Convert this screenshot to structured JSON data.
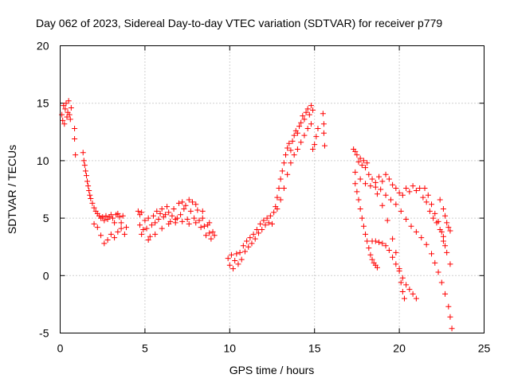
{
  "chart_data": {
    "type": "scatter",
    "title": "Day 062 of 2023, Sidereal Day-to-day VTEC variation (SDTVAR) for receiver p779",
    "xlabel": "GPS time / hours",
    "ylabel": "SDTVAR / TECUs",
    "xlim": [
      0,
      25
    ],
    "ylim": [
      -5,
      20
    ],
    "xticks": [
      "0",
      "5",
      "10",
      "15",
      "20",
      "25"
    ],
    "yticks": [
      "-5",
      "0",
      "5",
      "10",
      "15",
      "20"
    ],
    "grid": true,
    "marker": "+",
    "marker_color": "#ff0000",
    "series": [
      {
        "name": "SDTVAR",
        "points": [
          [
            0.1,
            14.0
          ],
          [
            0.15,
            13.5
          ],
          [
            0.2,
            14.8
          ],
          [
            0.25,
            13.2
          ],
          [
            0.3,
            14.5
          ],
          [
            0.35,
            15.0
          ],
          [
            0.4,
            13.8
          ],
          [
            0.45,
            14.2
          ],
          [
            0.5,
            15.2
          ],
          [
            0.55,
            14.0
          ],
          [
            0.6,
            13.6
          ],
          [
            0.65,
            14.6
          ],
          [
            0.85,
            12.8
          ],
          [
            0.85,
            11.9
          ],
          [
            0.9,
            10.5
          ],
          [
            1.35,
            10.7
          ],
          [
            1.4,
            10.0
          ],
          [
            1.45,
            9.6
          ],
          [
            1.5,
            9.1
          ],
          [
            1.55,
            8.7
          ],
          [
            1.6,
            8.2
          ],
          [
            1.65,
            7.8
          ],
          [
            1.7,
            7.4
          ],
          [
            1.75,
            7.0
          ],
          [
            1.8,
            6.7
          ],
          [
            1.9,
            6.3
          ],
          [
            2.0,
            5.9
          ],
          [
            2.1,
            5.6
          ],
          [
            2.2,
            5.4
          ],
          [
            2.3,
            5.2
          ],
          [
            2.4,
            5.0
          ],
          [
            2.5,
            5.1
          ],
          [
            2.6,
            4.8
          ],
          [
            2.7,
            5.2
          ],
          [
            2.8,
            4.9
          ],
          [
            2.9,
            5.1
          ],
          [
            3.0,
            5.3
          ],
          [
            3.1,
            5.0
          ],
          [
            3.2,
            4.6
          ],
          [
            3.3,
            5.3
          ],
          [
            3.4,
            5.4
          ],
          [
            3.5,
            5.1
          ],
          [
            3.6,
            4.6
          ],
          [
            3.7,
            5.2
          ],
          [
            2.0,
            4.5
          ],
          [
            2.2,
            4.2
          ],
          [
            2.4,
            3.5
          ],
          [
            2.6,
            2.8
          ],
          [
            2.8,
            3.1
          ],
          [
            3.0,
            3.6
          ],
          [
            3.2,
            3.3
          ],
          [
            3.4,
            3.8
          ],
          [
            3.6,
            4.1
          ],
          [
            3.8,
            3.6
          ],
          [
            3.9,
            4.2
          ],
          [
            4.6,
            5.6
          ],
          [
            4.7,
            5.3
          ],
          [
            4.8,
            5.5
          ],
          [
            4.7,
            4.4
          ],
          [
            4.8,
            3.6
          ],
          [
            4.9,
            4.0
          ],
          [
            5.0,
            4.8
          ],
          [
            5.1,
            4.1
          ],
          [
            5.2,
            5.0
          ],
          [
            5.3,
            3.4
          ],
          [
            5.4,
            4.4
          ],
          [
            5.5,
            5.2
          ],
          [
            5.6,
            4.6
          ],
          [
            5.7,
            5.6
          ],
          [
            5.8,
            4.9
          ],
          [
            5.9,
            5.4
          ],
          [
            6.0,
            5.8
          ],
          [
            6.1,
            5.1
          ],
          [
            6.2,
            5.3
          ],
          [
            6.3,
            6.0
          ],
          [
            6.4,
            5.5
          ],
          [
            6.5,
            4.7
          ],
          [
            6.6,
            5.2
          ],
          [
            6.7,
            5.8
          ],
          [
            6.8,
            4.6
          ],
          [
            6.9,
            5.0
          ],
          [
            7.0,
            6.3
          ],
          [
            7.1,
            5.3
          ],
          [
            7.2,
            4.7
          ],
          [
            7.3,
            5.8
          ],
          [
            7.4,
            6.1
          ],
          [
            7.5,
            4.9
          ],
          [
            7.6,
            4.5
          ],
          [
            7.7,
            5.6
          ],
          [
            7.8,
            6.4
          ],
          [
            7.9,
            5.0
          ],
          [
            8.0,
            4.6
          ],
          [
            8.1,
            5.7
          ],
          [
            8.2,
            4.8
          ],
          [
            8.3,
            4.2
          ],
          [
            8.4,
            5.0
          ],
          [
            8.5,
            4.3
          ],
          [
            8.6,
            3.5
          ],
          [
            8.7,
            4.4
          ],
          [
            8.8,
            3.7
          ],
          [
            8.9,
            3.2
          ],
          [
            9.0,
            3.8
          ],
          [
            9.1,
            3.5
          ],
          [
            5.2,
            3.1
          ],
          [
            5.6,
            3.6
          ],
          [
            6.0,
            4.1
          ],
          [
            6.4,
            4.5
          ],
          [
            6.8,
            4.9
          ],
          [
            7.2,
            6.4
          ],
          [
            7.6,
            6.6
          ],
          [
            8.0,
            6.2
          ],
          [
            8.4,
            5.6
          ],
          [
            8.8,
            4.6
          ],
          [
            9.9,
            1.5
          ],
          [
            10.0,
            0.9
          ],
          [
            10.1,
            1.8
          ],
          [
            10.2,
            0.6
          ],
          [
            10.3,
            1.3
          ],
          [
            10.4,
            1.9
          ],
          [
            10.5,
            1.0
          ],
          [
            10.6,
            2.0
          ],
          [
            10.7,
            1.4
          ],
          [
            10.8,
            2.6
          ],
          [
            10.9,
            2.1
          ],
          [
            11.0,
            3.0
          ],
          [
            11.1,
            2.5
          ],
          [
            11.2,
            3.3
          ],
          [
            11.3,
            2.8
          ],
          [
            11.4,
            3.6
          ],
          [
            11.5,
            3.2
          ],
          [
            11.6,
            4.0
          ],
          [
            11.7,
            3.7
          ],
          [
            11.8,
            4.5
          ],
          [
            11.9,
            4.0
          ],
          [
            12.0,
            4.8
          ],
          [
            12.1,
            4.4
          ],
          [
            12.2,
            5.0
          ],
          [
            12.3,
            4.6
          ],
          [
            12.4,
            5.2
          ],
          [
            12.5,
            4.5
          ],
          [
            12.6,
            5.5
          ],
          [
            12.7,
            6.0
          ],
          [
            12.8,
            6.8
          ],
          [
            12.9,
            7.6
          ],
          [
            13.0,
            8.4
          ],
          [
            13.1,
            9.1
          ],
          [
            13.2,
            9.8
          ],
          [
            13.3,
            10.5
          ],
          [
            13.4,
            11.1
          ],
          [
            13.5,
            11.5
          ],
          [
            13.6,
            10.9
          ],
          [
            13.7,
            11.7
          ],
          [
            13.8,
            12.2
          ],
          [
            13.9,
            12.6
          ],
          [
            14.0,
            12.4
          ],
          [
            14.1,
            13.0
          ],
          [
            14.2,
            13.3
          ],
          [
            14.3,
            13.9
          ],
          [
            14.4,
            13.6
          ],
          [
            14.5,
            14.2
          ],
          [
            14.6,
            14.5
          ],
          [
            14.7,
            14.0
          ],
          [
            14.8,
            14.8
          ],
          [
            14.9,
            14.4
          ],
          [
            12.8,
            5.8
          ],
          [
            13.0,
            6.6
          ],
          [
            13.2,
            7.6
          ],
          [
            13.4,
            8.8
          ],
          [
            13.6,
            9.8
          ],
          [
            13.8,
            10.5
          ],
          [
            14.0,
            11.0
          ],
          [
            14.2,
            11.6
          ],
          [
            14.4,
            12.2
          ],
          [
            14.6,
            12.8
          ],
          [
            14.8,
            13.2
          ],
          [
            14.9,
            11.0
          ],
          [
            15.0,
            11.4
          ],
          [
            15.1,
            12.1
          ],
          [
            15.2,
            12.8
          ],
          [
            15.5,
            14.1
          ],
          [
            15.55,
            13.2
          ],
          [
            15.55,
            12.4
          ],
          [
            15.6,
            11.3
          ],
          [
            17.3,
            11.0
          ],
          [
            17.4,
            10.8
          ],
          [
            17.5,
            10.5
          ],
          [
            17.6,
            9.9
          ],
          [
            17.7,
            10.2
          ],
          [
            17.8,
            9.6
          ],
          [
            17.9,
            10.0
          ],
          [
            18.0,
            9.4
          ],
          [
            18.1,
            9.8
          ],
          [
            17.4,
            8.0
          ],
          [
            17.5,
            7.3
          ],
          [
            17.6,
            6.6
          ],
          [
            17.7,
            5.8
          ],
          [
            17.8,
            5.0
          ],
          [
            17.9,
            4.3
          ],
          [
            18.0,
            3.6
          ],
          [
            18.1,
            3.0
          ],
          [
            18.2,
            2.4
          ],
          [
            18.3,
            1.8
          ],
          [
            18.4,
            1.4
          ],
          [
            18.5,
            1.1
          ],
          [
            18.6,
            0.9
          ],
          [
            18.7,
            0.7
          ],
          [
            18.4,
            3.0
          ],
          [
            18.6,
            3.0
          ],
          [
            18.8,
            2.9
          ],
          [
            19.0,
            2.8
          ],
          [
            19.2,
            2.6
          ],
          [
            19.4,
            2.2
          ],
          [
            19.6,
            1.6
          ],
          [
            19.8,
            1.0
          ],
          [
            20.0,
            0.4
          ],
          [
            20.2,
            -0.2
          ],
          [
            20.4,
            -0.8
          ],
          [
            20.6,
            -1.2
          ],
          [
            20.8,
            -1.6
          ],
          [
            21.0,
            -2.0
          ],
          [
            18.2,
            8.8
          ],
          [
            18.4,
            8.4
          ],
          [
            18.6,
            8.1
          ],
          [
            18.8,
            8.6
          ],
          [
            19.0,
            8.2
          ],
          [
            19.2,
            8.8
          ],
          [
            19.4,
            8.4
          ],
          [
            19.6,
            7.9
          ],
          [
            19.8,
            7.6
          ],
          [
            20.0,
            7.2
          ],
          [
            20.2,
            7.0
          ],
          [
            20.4,
            7.6
          ],
          [
            20.6,
            7.3
          ],
          [
            20.8,
            7.8
          ],
          [
            21.0,
            7.4
          ],
          [
            21.2,
            7.6
          ],
          [
            21.4,
            6.8
          ],
          [
            21.6,
            6.4
          ],
          [
            21.8,
            5.6
          ],
          [
            22.0,
            5.0
          ],
          [
            22.2,
            4.6
          ],
          [
            22.4,
            4.0
          ],
          [
            22.6,
            3.0
          ],
          [
            22.8,
            2.0
          ],
          [
            23.0,
            1.0
          ],
          [
            17.4,
            9.0
          ],
          [
            17.7,
            8.4
          ],
          [
            18.0,
            8.0
          ],
          [
            18.3,
            7.8
          ],
          [
            18.6,
            7.7
          ],
          [
            18.9,
            7.5
          ],
          [
            19.2,
            7.0
          ],
          [
            19.5,
            6.6
          ],
          [
            19.8,
            6.2
          ],
          [
            20.1,
            5.6
          ],
          [
            20.4,
            4.9
          ],
          [
            20.7,
            4.3
          ],
          [
            21.0,
            3.8
          ],
          [
            21.3,
            3.3
          ],
          [
            21.6,
            2.7
          ],
          [
            21.9,
            1.9
          ],
          [
            22.1,
            1.1
          ],
          [
            22.3,
            0.3
          ],
          [
            22.5,
            -0.6
          ],
          [
            22.7,
            -1.6
          ],
          [
            22.9,
            -2.7
          ],
          [
            23.0,
            -3.6
          ],
          [
            23.1,
            -4.6
          ],
          [
            18.7,
            7.1
          ],
          [
            19.0,
            6.1
          ],
          [
            19.3,
            4.8
          ],
          [
            19.6,
            3.2
          ],
          [
            19.8,
            2.0
          ],
          [
            20.0,
            0.6
          ],
          [
            20.1,
            -0.6
          ],
          [
            20.2,
            -1.4
          ],
          [
            20.3,
            -2.0
          ],
          [
            22.4,
            6.6
          ],
          [
            22.6,
            5.8
          ],
          [
            22.7,
            5.2
          ],
          [
            22.8,
            4.6
          ],
          [
            22.9,
            4.2
          ],
          [
            23.0,
            3.9
          ],
          [
            21.5,
            7.6
          ],
          [
            21.7,
            7.0
          ],
          [
            21.9,
            6.2
          ],
          [
            22.1,
            5.4
          ],
          [
            22.3,
            4.7
          ],
          [
            22.5,
            3.8
          ],
          [
            22.6,
            3.4
          ],
          [
            22.7,
            2.6
          ]
        ]
      }
    ]
  }
}
